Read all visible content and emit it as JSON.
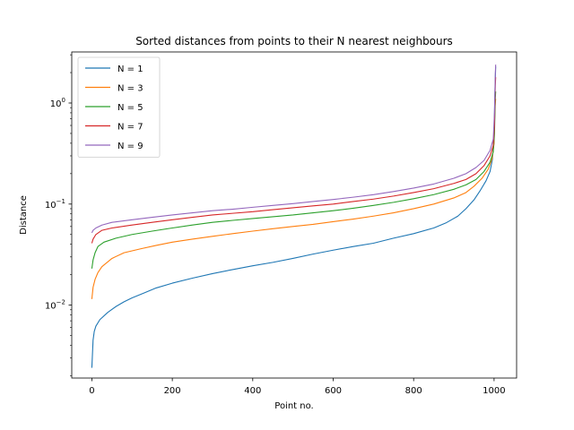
{
  "chart_data": {
    "type": "line",
    "title": "Sorted distances from points to their N nearest neighbours",
    "xlabel": "Point no.",
    "ylabel": "Distance",
    "xlim": [
      -50,
      1056
    ],
    "ylim": [
      0.0019,
      3.2
    ],
    "y_scale": "log",
    "grid": false,
    "legend_position": "top-left",
    "x_ticks": [
      0,
      200,
      400,
      600,
      800,
      1000
    ],
    "x_tick_labels": [
      "0",
      "200",
      "400",
      "600",
      "800",
      "1000"
    ],
    "y_ticks": [
      0.01,
      0.1,
      1
    ],
    "y_tick_labels": [
      {
        "base": "10",
        "exp": "−2"
      },
      {
        "base": "10",
        "exp": "−1"
      },
      {
        "base": "10",
        "exp": "0"
      }
    ],
    "series": [
      {
        "name": "N = 1",
        "color": "#1f77b4",
        "points": [
          [
            0,
            0.0024
          ],
          [
            3,
            0.0045
          ],
          [
            6,
            0.0055
          ],
          [
            10,
            0.0062
          ],
          [
            20,
            0.0072
          ],
          [
            40,
            0.0085
          ],
          [
            60,
            0.0097
          ],
          [
            80,
            0.0108
          ],
          [
            100,
            0.0118
          ],
          [
            130,
            0.0132
          ],
          [
            160,
            0.0148
          ],
          [
            200,
            0.0165
          ],
          [
            250,
            0.0185
          ],
          [
            300,
            0.0205
          ],
          [
            350,
            0.0225
          ],
          [
            400,
            0.0245
          ],
          [
            450,
            0.0265
          ],
          [
            500,
            0.029
          ],
          [
            550,
            0.032
          ],
          [
            600,
            0.035
          ],
          [
            650,
            0.038
          ],
          [
            700,
            0.041
          ],
          [
            750,
            0.046
          ],
          [
            800,
            0.051
          ],
          [
            850,
            0.058
          ],
          [
            880,
            0.065
          ],
          [
            910,
            0.076
          ],
          [
            930,
            0.09
          ],
          [
            950,
            0.11
          ],
          [
            965,
            0.135
          ],
          [
            980,
            0.17
          ],
          [
            990,
            0.21
          ],
          [
            996,
            0.28
          ],
          [
            1000,
            0.5
          ],
          [
            1002,
            1.2
          ],
          [
            1004,
            2.3
          ]
        ]
      },
      {
        "name": "N = 3",
        "color": "#ff7f0e",
        "points": [
          [
            0,
            0.0115
          ],
          [
            3,
            0.015
          ],
          [
            8,
            0.018
          ],
          [
            15,
            0.021
          ],
          [
            25,
            0.024
          ],
          [
            50,
            0.029
          ],
          [
            80,
            0.033
          ],
          [
            120,
            0.036
          ],
          [
            160,
            0.039
          ],
          [
            200,
            0.042
          ],
          [
            250,
            0.045
          ],
          [
            300,
            0.048
          ],
          [
            350,
            0.051
          ],
          [
            400,
            0.054
          ],
          [
            450,
            0.057
          ],
          [
            500,
            0.06
          ],
          [
            550,
            0.063
          ],
          [
            600,
            0.067
          ],
          [
            650,
            0.071
          ],
          [
            700,
            0.076
          ],
          [
            750,
            0.082
          ],
          [
            800,
            0.09
          ],
          [
            850,
            0.1
          ],
          [
            900,
            0.115
          ],
          [
            930,
            0.13
          ],
          [
            950,
            0.15
          ],
          [
            970,
            0.18
          ],
          [
            985,
            0.22
          ],
          [
            995,
            0.28
          ],
          [
            1000,
            0.4
          ],
          [
            1002,
            0.9
          ],
          [
            1004,
            1.1
          ]
        ]
      },
      {
        "name": "N = 5",
        "color": "#2ca02c",
        "points": [
          [
            0,
            0.023
          ],
          [
            3,
            0.028
          ],
          [
            8,
            0.033
          ],
          [
            15,
            0.038
          ],
          [
            30,
            0.042
          ],
          [
            60,
            0.046
          ],
          [
            100,
            0.05
          ],
          [
            150,
            0.054
          ],
          [
            200,
            0.058
          ],
          [
            250,
            0.062
          ],
          [
            300,
            0.066
          ],
          [
            350,
            0.069
          ],
          [
            400,
            0.072
          ],
          [
            450,
            0.075
          ],
          [
            500,
            0.078
          ],
          [
            550,
            0.082
          ],
          [
            600,
            0.086
          ],
          [
            650,
            0.091
          ],
          [
            700,
            0.097
          ],
          [
            750,
            0.104
          ],
          [
            800,
            0.113
          ],
          [
            850,
            0.124
          ],
          [
            900,
            0.14
          ],
          [
            930,
            0.155
          ],
          [
            955,
            0.175
          ],
          [
            975,
            0.21
          ],
          [
            990,
            0.26
          ],
          [
            998,
            0.33
          ],
          [
            1001,
            0.5
          ],
          [
            1003,
            1.1
          ],
          [
            1004,
            1.3
          ]
        ]
      },
      {
        "name": "N = 7",
        "color": "#d62728",
        "points": [
          [
            0,
            0.041
          ],
          [
            3,
            0.045
          ],
          [
            10,
            0.05
          ],
          [
            25,
            0.055
          ],
          [
            50,
            0.058
          ],
          [
            100,
            0.062
          ],
          [
            150,
            0.066
          ],
          [
            200,
            0.07
          ],
          [
            250,
            0.074
          ],
          [
            300,
            0.078
          ],
          [
            350,
            0.081
          ],
          [
            400,
            0.084
          ],
          [
            450,
            0.088
          ],
          [
            500,
            0.092
          ],
          [
            550,
            0.096
          ],
          [
            600,
            0.1
          ],
          [
            650,
            0.106
          ],
          [
            700,
            0.112
          ],
          [
            750,
            0.12
          ],
          [
            800,
            0.13
          ],
          [
            850,
            0.142
          ],
          [
            900,
            0.16
          ],
          [
            930,
            0.175
          ],
          [
            955,
            0.2
          ],
          [
            975,
            0.24
          ],
          [
            990,
            0.3
          ],
          [
            998,
            0.38
          ],
          [
            1001,
            0.6
          ],
          [
            1003,
            1.5
          ],
          [
            1004,
            1.8
          ]
        ]
      },
      {
        "name": "N = 9",
        "color": "#9467bd",
        "points": [
          [
            0,
            0.052
          ],
          [
            3,
            0.055
          ],
          [
            10,
            0.058
          ],
          [
            25,
            0.062
          ],
          [
            50,
            0.066
          ],
          [
            100,
            0.07
          ],
          [
            150,
            0.074
          ],
          [
            200,
            0.078
          ],
          [
            250,
            0.082
          ],
          [
            300,
            0.086
          ],
          [
            350,
            0.089
          ],
          [
            400,
            0.093
          ],
          [
            450,
            0.097
          ],
          [
            500,
            0.101
          ],
          [
            550,
            0.106
          ],
          [
            600,
            0.111
          ],
          [
            650,
            0.117
          ],
          [
            700,
            0.124
          ],
          [
            750,
            0.133
          ],
          [
            800,
            0.144
          ],
          [
            850,
            0.158
          ],
          [
            900,
            0.18
          ],
          [
            930,
            0.2
          ],
          [
            955,
            0.23
          ],
          [
            975,
            0.27
          ],
          [
            990,
            0.34
          ],
          [
            998,
            0.44
          ],
          [
            1001,
            0.8
          ],
          [
            1003,
            1.9
          ],
          [
            1004,
            2.4
          ]
        ]
      }
    ]
  }
}
